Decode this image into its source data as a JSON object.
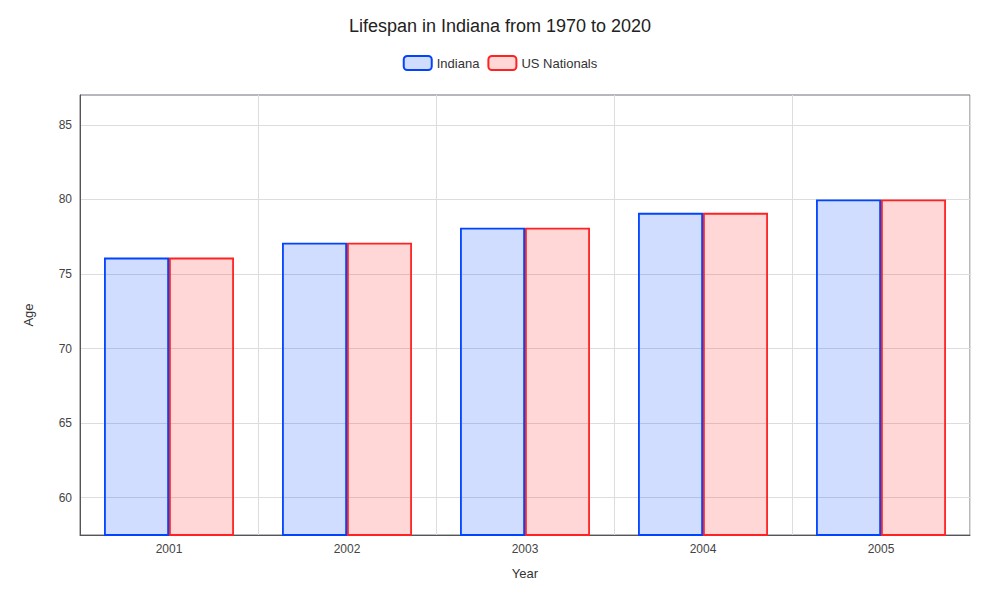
{
  "chart_data": {
    "type": "bar",
    "title": "Lifespan in Indiana from 1970 to 2020",
    "x_label": "Year",
    "y_label": "Age",
    "categories": [
      "2001",
      "2002",
      "2003",
      "2004",
      "2005"
    ],
    "series": [
      {
        "name": "Indiana",
        "color": "#0044ff",
        "values": [
          76.1,
          77.1,
          78.1,
          79.1,
          80.0
        ]
      },
      {
        "name": "US Nationals",
        "color": "#ff2222",
        "values": [
          76.1,
          77.1,
          78.1,
          79.1,
          80.0
        ]
      }
    ],
    "ylim": [
      57.5,
      87
    ],
    "yticks": [
      60,
      65,
      70,
      75,
      80,
      85
    ],
    "grid": true,
    "legend": "top"
  }
}
